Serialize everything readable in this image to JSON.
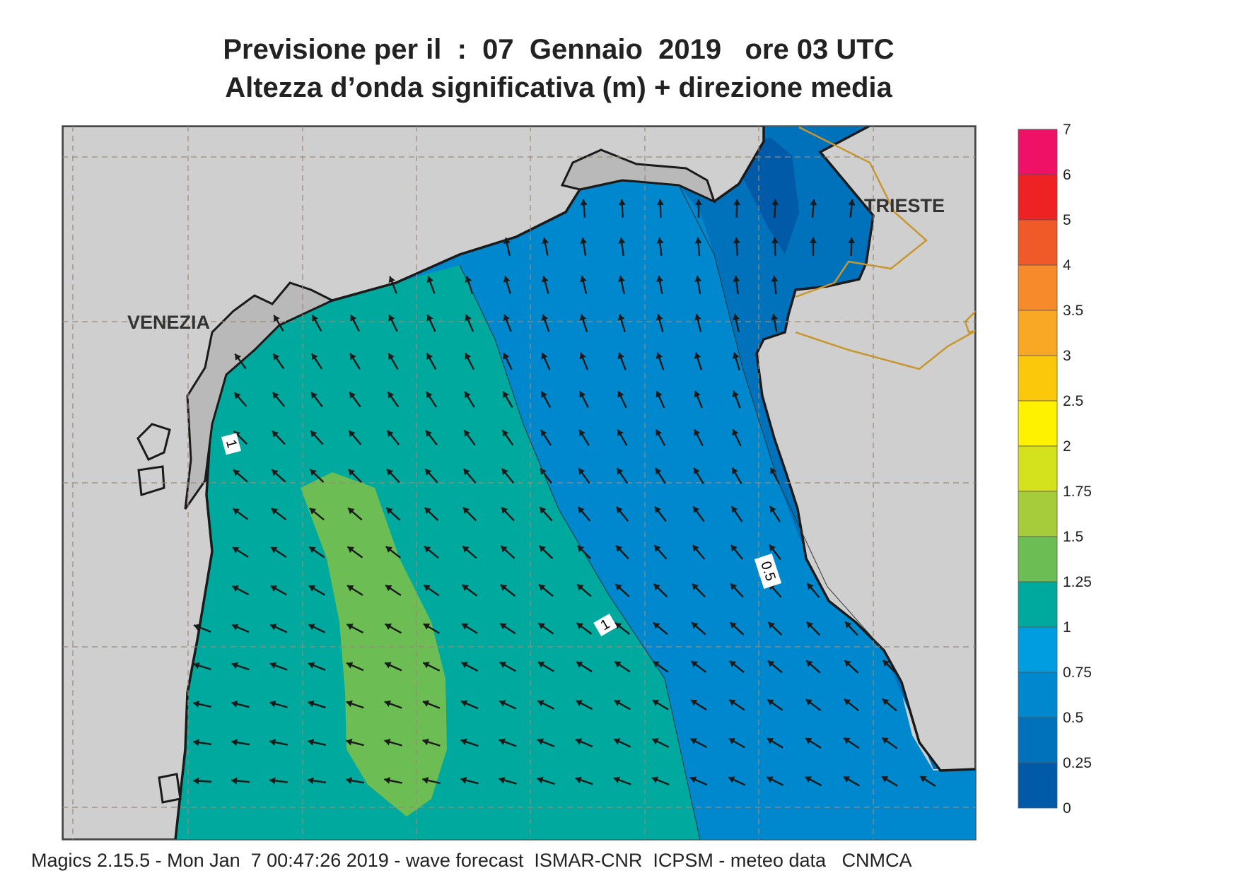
{
  "title": {
    "line1": "Previsione per il  :  07  Gennaio  2019   ore 03 UTC",
    "line2": "Altezza d’onda significativa (m) + direzione media"
  },
  "cities": [
    {
      "name": "VENEZIA"
    },
    {
      "name": "TRIESTE"
    }
  ],
  "contour_labels": [
    "1",
    "1",
    "0.5"
  ],
  "legend": {
    "levels": [
      "7",
      "6",
      "5",
      "4",
      "3.5",
      "3",
      "2.5",
      "2",
      "1.75",
      "1.5",
      "1.25",
      "1",
      "0.75",
      "0.5",
      "0.25",
      "0"
    ],
    "colors": [
      "#ee1166",
      "#ee2222",
      "#f05a28",
      "#f78a2a",
      "#f9a825",
      "#fcc80b",
      "#fff200",
      "#d4e21e",
      "#a6cc3c",
      "#6cbd53",
      "#00a99d",
      "#009ee0",
      "#0088cf",
      "#0072bb",
      "#005aa8"
    ]
  },
  "colors": {
    "land": "#cfcfcf",
    "coast": "#1a1a1a",
    "border": "#c8962e",
    "grid": "#9a8a7a"
  },
  "arrow_icon": "wave-direction-arrow-icon",
  "footer": "Magics 2.15.5 - Mon Jan  7 00:47:26 2019 - wave forecast  ISMAR-CNR  ICPSM - meteo data   CNMCA"
}
